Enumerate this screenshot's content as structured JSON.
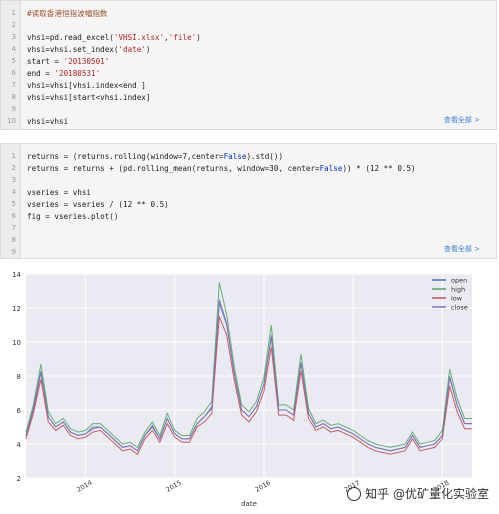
{
  "code_block_1": {
    "lines": [
      {
        "n": "1",
        "segments": [
          {
            "t": "#读取香港恒指波幅指数",
            "c": "comment"
          }
        ]
      },
      {
        "n": "2",
        "segments": []
      },
      {
        "n": "3",
        "segments": [
          {
            "t": "vhsi=pd.read_excel(",
            "c": ""
          },
          {
            "t": "'VHSI.xlsx'",
            "c": "str"
          },
          {
            "t": ",",
            "c": ""
          },
          {
            "t": "'file'",
            "c": "str"
          },
          {
            "t": ")",
            "c": ""
          }
        ]
      },
      {
        "n": "4",
        "segments": [
          {
            "t": "vhsi=vhsi.set_index(",
            "c": ""
          },
          {
            "t": "'date'",
            "c": "str"
          },
          {
            "t": ")",
            "c": ""
          }
        ]
      },
      {
        "n": "5",
        "segments": [
          {
            "t": "start = ",
            "c": ""
          },
          {
            "t": "'20130501'",
            "c": "str"
          }
        ]
      },
      {
        "n": "6",
        "segments": [
          {
            "t": "end = ",
            "c": ""
          },
          {
            "t": "'20180531'",
            "c": "str"
          }
        ]
      },
      {
        "n": "7",
        "segments": [
          {
            "t": "vhsi=vhsi[vhsi.index<end ]",
            "c": ""
          }
        ]
      },
      {
        "n": "8",
        "segments": [
          {
            "t": "vhsi=vhsi[start<vhsi.index]",
            "c": ""
          }
        ]
      },
      {
        "n": "9",
        "segments": []
      },
      {
        "n": "10",
        "segments": [
          {
            "t": "vhsi=vhsi",
            "c": ""
          }
        ]
      }
    ],
    "more_label": "查看全部 >"
  },
  "code_block_2": {
    "lines": [
      {
        "n": "1",
        "segments": [
          {
            "t": "returns = (returns.rolling(window=7,center=",
            "c": ""
          },
          {
            "t": "False",
            "c": "kw"
          },
          {
            "t": ").std())",
            "c": ""
          }
        ]
      },
      {
        "n": "2",
        "segments": [
          {
            "t": "returns = returns + (pd.rolling_mean(returns, window=30, center=",
            "c": ""
          },
          {
            "t": "False",
            "c": "kw"
          },
          {
            "t": ")) * (12 ** 0.5)",
            "c": ""
          }
        ]
      },
      {
        "n": "3",
        "segments": []
      },
      {
        "n": "4",
        "segments": [
          {
            "t": "vseries = vhsi",
            "c": ""
          }
        ]
      },
      {
        "n": "5",
        "segments": [
          {
            "t": "vseries = vseries / (12 ** 0.5)",
            "c": ""
          }
        ]
      },
      {
        "n": "6",
        "segments": [
          {
            "t": "fig = vseries.plot()",
            "c": ""
          }
        ]
      },
      {
        "n": "7",
        "segments": []
      },
      {
        "n": "8",
        "segments": []
      },
      {
        "n": "9",
        "segments": []
      }
    ],
    "more_label": "查看全部 >"
  },
  "watermark": "知乎 @优矿量化实验室",
  "colors": {
    "open": "#4c72b0",
    "high": "#55a868",
    "low": "#c44e52",
    "close": "#8172b2",
    "plot_bg": "#eaeaf2",
    "more_link": "#3d7fd0"
  },
  "chart_data": {
    "type": "line",
    "xlabel": "date",
    "ylabel": "",
    "ylim": [
      2,
      14
    ],
    "yticks": [
      "2",
      "4",
      "6",
      "8",
      "10",
      "12",
      "14"
    ],
    "xticks": [
      "2014",
      "2015",
      "2016",
      "2017",
      "2018"
    ],
    "grid": true,
    "legend_position": "top-right",
    "x": [
      "2013-05",
      "2013-06",
      "2013-07",
      "2013-08",
      "2013-09",
      "2013-10",
      "2013-11",
      "2013-12",
      "2014-01",
      "2014-02",
      "2014-03",
      "2014-04",
      "2014-05",
      "2014-06",
      "2014-07",
      "2014-08",
      "2014-09",
      "2014-10",
      "2014-11",
      "2014-12",
      "2015-01",
      "2015-02",
      "2015-03",
      "2015-04",
      "2015-05",
      "2015-06",
      "2015-07",
      "2015-08",
      "2015-09",
      "2015-10",
      "2015-11",
      "2015-12",
      "2016-01",
      "2016-02",
      "2016-03",
      "2016-04",
      "2016-05",
      "2016-06",
      "2016-07",
      "2016-08",
      "2016-09",
      "2016-10",
      "2016-11",
      "2016-12",
      "2017-01",
      "2017-02",
      "2017-03",
      "2017-04",
      "2017-05",
      "2017-06",
      "2017-07",
      "2017-08",
      "2017-09",
      "2017-10",
      "2017-11",
      "2017-12",
      "2018-01",
      "2018-02",
      "2018-03",
      "2018-04",
      "2018-05"
    ],
    "series": [
      {
        "name": "open",
        "values": [
          4.5,
          6.0,
          8.2,
          5.6,
          5.0,
          5.3,
          4.7,
          4.5,
          4.6,
          4.9,
          5.0,
          4.6,
          4.2,
          3.8,
          3.9,
          3.6,
          4.5,
          5.0,
          4.3,
          5.5,
          4.6,
          4.3,
          4.3,
          5.2,
          5.6,
          6.1,
          12.3,
          11.0,
          8.2,
          6.0,
          5.6,
          6.2,
          7.5,
          10.3,
          6.0,
          6.0,
          5.7,
          8.8,
          5.8,
          5.0,
          5.2,
          4.9,
          5.0,
          4.8,
          4.6,
          4.3,
          4.0,
          3.8,
          3.7,
          3.6,
          3.7,
          3.8,
          4.5,
          3.8,
          3.9,
          4.0,
          4.5,
          7.9,
          6.3,
          5.2,
          5.2
        ]
      },
      {
        "name": "high",
        "values": [
          4.7,
          6.3,
          8.7,
          5.9,
          5.2,
          5.5,
          4.9,
          4.7,
          4.8,
          5.2,
          5.2,
          4.8,
          4.4,
          4.0,
          4.1,
          3.8,
          4.7,
          5.3,
          4.5,
          5.8,
          4.8,
          4.5,
          4.5,
          5.5,
          5.9,
          6.5,
          13.5,
          11.6,
          8.6,
          6.3,
          5.9,
          6.5,
          7.9,
          11.0,
          6.3,
          6.3,
          6.0,
          9.3,
          6.1,
          5.2,
          5.4,
          5.1,
          5.2,
          5.0,
          4.8,
          4.5,
          4.2,
          4.0,
          3.9,
          3.8,
          3.9,
          4.0,
          4.7,
          4.0,
          4.1,
          4.2,
          4.8,
          8.4,
          6.7,
          5.5,
          5.5
        ]
      },
      {
        "name": "low",
        "values": [
          4.3,
          5.8,
          7.8,
          5.3,
          4.8,
          5.1,
          4.5,
          4.3,
          4.4,
          4.7,
          4.8,
          4.4,
          4.0,
          3.6,
          3.7,
          3.4,
          4.3,
          4.8,
          4.1,
          5.2,
          4.4,
          4.1,
          4.1,
          5.0,
          5.3,
          5.8,
          11.5,
          10.4,
          7.8,
          5.7,
          5.3,
          5.9,
          7.1,
          9.7,
          5.7,
          5.7,
          5.4,
          8.3,
          5.5,
          4.8,
          5.0,
          4.7,
          4.8,
          4.6,
          4.4,
          4.1,
          3.8,
          3.6,
          3.5,
          3.4,
          3.5,
          3.6,
          4.3,
          3.6,
          3.7,
          3.8,
          4.3,
          7.4,
          5.9,
          4.9,
          4.9
        ]
      },
      {
        "name": "close",
        "values": [
          4.5,
          6.1,
          8.3,
          5.6,
          5.0,
          5.3,
          4.7,
          4.5,
          4.6,
          5.0,
          5.0,
          4.6,
          4.2,
          3.8,
          3.9,
          3.6,
          4.5,
          5.1,
          4.3,
          5.5,
          4.6,
          4.3,
          4.3,
          5.2,
          5.6,
          6.2,
          12.5,
          11.1,
          8.2,
          6.0,
          5.6,
          6.2,
          7.5,
          10.4,
          6.0,
          6.0,
          5.7,
          8.8,
          5.8,
          5.0,
          5.2,
          4.9,
          5.0,
          4.8,
          4.6,
          4.3,
          4.0,
          3.8,
          3.7,
          3.6,
          3.7,
          3.8,
          4.5,
          3.8,
          3.9,
          4.0,
          4.5,
          8.0,
          6.3,
          5.2,
          5.2
        ]
      }
    ]
  }
}
